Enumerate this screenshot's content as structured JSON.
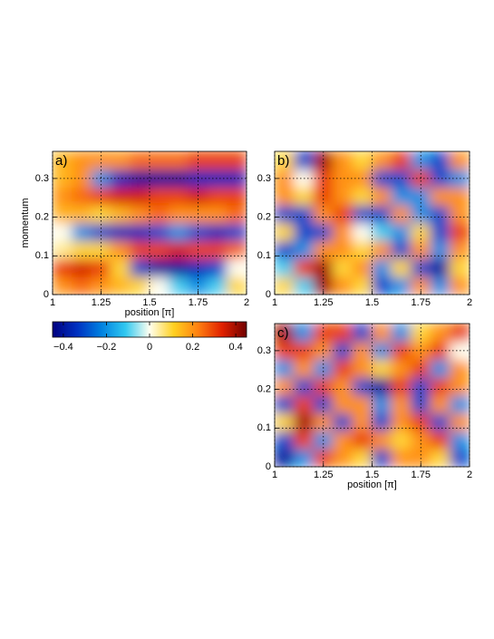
{
  "chart_data": [
    {
      "type": "heatmap",
      "label": "a)",
      "xlabel": "position [π]",
      "ylabel": "momentum",
      "xlim": [
        1,
        2
      ],
      "ylim": [
        0,
        0.37
      ],
      "xticks": [
        1,
        1.25,
        1.5,
        1.75,
        2
      ],
      "yticks": [
        0,
        0.1,
        0.2,
        0.3
      ],
      "grid": true,
      "z": [
        [
          0.2,
          0.25,
          0.2,
          0.15,
          0.1,
          0.0,
          -0.1,
          -0.2,
          -0.1,
          0.1
        ],
        [
          0.3,
          0.35,
          0.3,
          0.1,
          -0.3,
          -0.4,
          -0.4,
          -0.35,
          -0.3,
          0.0
        ],
        [
          0.05,
          0.1,
          0.1,
          0.2,
          0.3,
          0.3,
          0.35,
          0.3,
          0.3,
          0.25
        ],
        [
          0.0,
          -0.2,
          -0.3,
          -0.35,
          -0.35,
          -0.3,
          -0.2,
          -0.3,
          -0.35,
          -0.3
        ],
        [
          0.15,
          0.15,
          0.1,
          0.15,
          0.2,
          0.25,
          0.2,
          0.2,
          0.2,
          0.25
        ],
        [
          0.2,
          0.25,
          0.3,
          0.35,
          0.35,
          0.3,
          0.3,
          0.35,
          0.3,
          0.3
        ],
        [
          0.15,
          0.2,
          -0.2,
          -0.35,
          -0.4,
          -0.4,
          -0.4,
          -0.35,
          -0.35,
          -0.35
        ],
        [
          0.15,
          0.2,
          0.2,
          0.2,
          0.25,
          0.25,
          0.25,
          0.3,
          0.3,
          0.3
        ]
      ]
    },
    {
      "type": "heatmap",
      "label": "b)",
      "xlim": [
        1,
        2
      ],
      "ylim": [
        0,
        0.37
      ],
      "xticks": [
        1,
        1.25,
        1.5,
        1.75,
        2
      ],
      "yticks": [
        0,
        0.1,
        0.2,
        0.3
      ],
      "grid": true,
      "z": [
        [
          0.1,
          -0.1,
          0.4,
          0.2,
          0.1,
          -0.3,
          -0.2,
          0.2,
          -0.2,
          0.2
        ],
        [
          -0.1,
          0.3,
          0.4,
          0.1,
          0.2,
          -0.2,
          0.1,
          -0.3,
          -0.4,
          0.1
        ],
        [
          -0.3,
          -0.2,
          0.2,
          0.2,
          0.1,
          0.2,
          -0.3,
          0.2,
          -0.2,
          0.2
        ],
        [
          0.1,
          -0.3,
          -0.3,
          0.2,
          0.0,
          -0.1,
          -0.2,
          0.1,
          -0.3,
          0.3
        ],
        [
          -0.3,
          -0.3,
          0.2,
          0.3,
          -0.3,
          -0.3,
          0.2,
          -0.2,
          -0.3,
          0.2
        ],
        [
          0.2,
          0.1,
          0.3,
          0.2,
          0.1,
          0.2,
          -0.2,
          -0.2,
          0.2,
          0.2
        ],
        [
          0.2,
          0.0,
          0.3,
          0.2,
          0.2,
          -0.3,
          -0.3,
          0.3,
          -0.3,
          -0.2
        ],
        [
          0.1,
          -0.3,
          0.4,
          0.2,
          0.1,
          0.2,
          0.3,
          -0.2,
          -0.3,
          0.2
        ]
      ]
    },
    {
      "type": "heatmap",
      "label": "c)",
      "xlabel": "position [π]",
      "xlim": [
        1,
        2
      ],
      "ylim": [
        0,
        0.37
      ],
      "xticks": [
        1,
        1.25,
        1.5,
        1.75,
        2
      ],
      "yticks": [
        0,
        0.1,
        0.2,
        0.3
      ],
      "grid": true,
      "z": [
        [
          -0.4,
          -0.2,
          0.3,
          0.2,
          0.1,
          -0.3,
          0.2,
          0.2,
          0.1,
          -0.3
        ],
        [
          -0.3,
          0.3,
          -0.2,
          0.2,
          0.3,
          0.2,
          0.1,
          0.2,
          0.3,
          -0.2
        ],
        [
          0.1,
          0.4,
          0.2,
          -0.3,
          0.2,
          -0.3,
          0.2,
          0.3,
          -0.3,
          0.2
        ],
        [
          -0.3,
          0.3,
          -0.3,
          0.2,
          0.2,
          -0.2,
          0.2,
          -0.3,
          0.2,
          -0.2
        ],
        [
          0.2,
          -0.3,
          0.3,
          0.2,
          -0.3,
          -0.4,
          0.3,
          -0.3,
          0.3,
          0.2
        ],
        [
          -0.2,
          0.2,
          -0.2,
          0.3,
          0.2,
          0.1,
          0.2,
          0.3,
          -0.2,
          0.2
        ],
        [
          0.3,
          0.3,
          0.2,
          -0.3,
          0.2,
          -0.2,
          0.3,
          0.2,
          0.3,
          0.0
        ],
        [
          0.4,
          -0.2,
          0.3,
          0.3,
          -0.3,
          0.2,
          -0.2,
          0.1,
          0.2,
          0.3
        ]
      ]
    },
    {
      "type": "colorbar",
      "clim": [
        -0.45,
        0.45
      ],
      "ticks": [
        {
          "value": -0.4,
          "label": "−0.4"
        },
        {
          "value": -0.2,
          "label": "−0.2"
        },
        0,
        0.2,
        0.4
      ],
      "colormap": [
        "#000080",
        "#0030c0",
        "#0080e0",
        "#30c8f0",
        "#fffff0",
        "#ffd020",
        "#ff8010",
        "#e02000",
        "#700000"
      ]
    }
  ]
}
